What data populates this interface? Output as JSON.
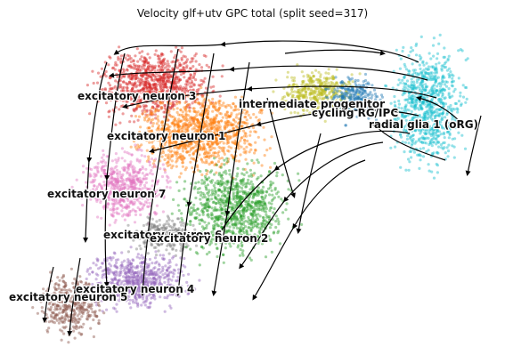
{
  "chart_data": {
    "type": "scatter",
    "title": "Velocity glf+utv GPC total (split seed=317)",
    "xlabel": "",
    "ylabel": "",
    "grid": false,
    "axes_visible": false,
    "overlay": "velocity streamlines with arrowheads",
    "clusters": [
      {
        "name": "excitatory neuron 3",
        "color": "#d62728"
      },
      {
        "name": "excitatory neuron 1",
        "color": "#ff7f0e"
      },
      {
        "name": "intermediate progenitor",
        "color": "#bcbd22"
      },
      {
        "name": "cycling RG/IPC",
        "color": "#1f77b4"
      },
      {
        "name": "radial glia 1 (oRG)",
        "color": "#17becf"
      },
      {
        "name": "excitatory neuron 7",
        "color": "#e377c2"
      },
      {
        "name": "excitatory neuron 6",
        "color": "#7f7f7f"
      },
      {
        "name": "excitatory neuron 2",
        "color": "#2ca02c"
      },
      {
        "name": "excitatory neuron 4",
        "color": "#9467bd"
      },
      {
        "name": "excitatory neuron 5",
        "color": "#8c564b"
      }
    ]
  }
}
